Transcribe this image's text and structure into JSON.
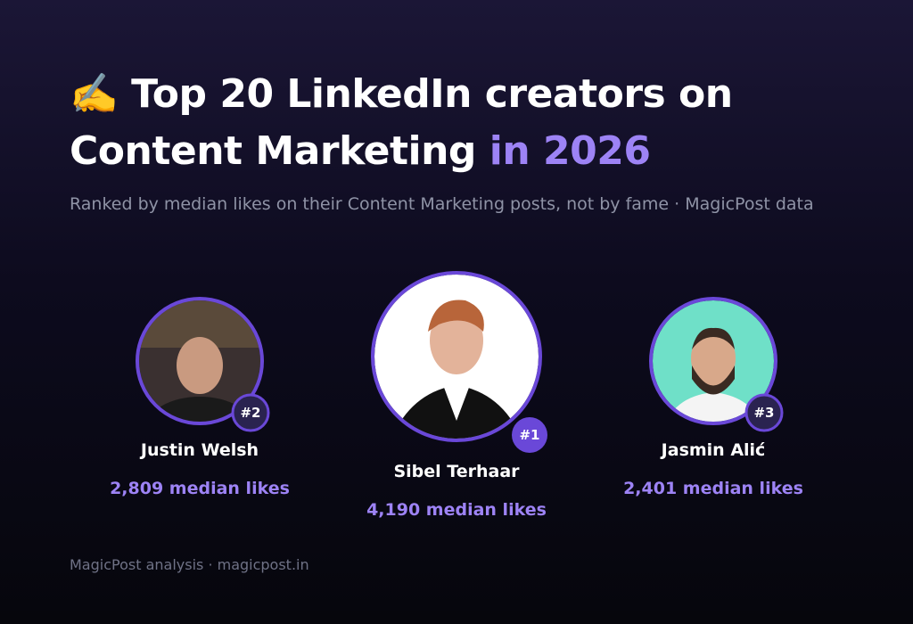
{
  "header": {
    "emoji": "✍️",
    "title": "Top 20 LinkedIn creators on Content Marketing",
    "title_highlight": "in 2026",
    "subtitle": "Ranked by median likes on their Content Marketing posts, not by fame · MagicPost data"
  },
  "creators": [
    {
      "rank": "#1",
      "name": "Sibel Terhaar",
      "likes": "4,190 median likes"
    },
    {
      "rank": "#2",
      "name": "Justin Welsh",
      "likes": "2,809 median likes"
    },
    {
      "rank": "#3",
      "name": "Jasmin Alić",
      "likes": "2,401 median likes"
    }
  ],
  "footer": "MagicPost analysis · magicpost.in"
}
